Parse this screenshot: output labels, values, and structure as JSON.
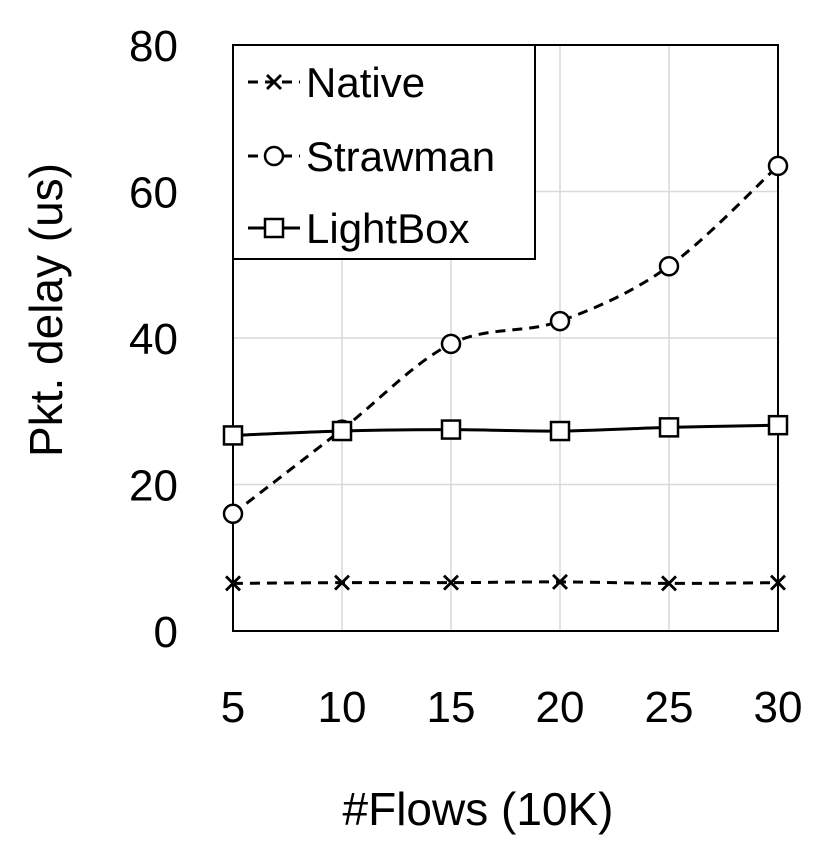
{
  "chart_data": {
    "type": "line",
    "title": "",
    "xlabel": "#Flows (10K)",
    "ylabel": "Pkt. delay (us)",
    "x": [
      5,
      10,
      15,
      20,
      25,
      30
    ],
    "x_tick_labels": [
      "5",
      "10",
      "15",
      "20",
      "25",
      "30"
    ],
    "ylim": [
      0,
      80
    ],
    "y_ticks": [
      0,
      20,
      40,
      60,
      80
    ],
    "y_tick_labels": [
      "0",
      "20",
      "40",
      "60",
      "80"
    ],
    "grid": "on (vertical and horizontal)",
    "legend_position": "top-left",
    "series": [
      {
        "name": "Native",
        "values": [
          6.5,
          6.6,
          6.6,
          6.7,
          6.5,
          6.6
        ],
        "line_style": "dashed",
        "marker": "x",
        "color": "#000000"
      },
      {
        "name": "Strawman",
        "values": [
          16,
          27.5,
          39.2,
          42.3,
          49.8,
          63.5
        ],
        "line_style": "dashed",
        "marker": "circle",
        "color": "#000000"
      },
      {
        "name": "LightBox",
        "values": [
          26.7,
          27.3,
          27.5,
          27.3,
          27.8,
          28.1
        ],
        "line_style": "solid",
        "marker": "square",
        "color": "#000000"
      }
    ]
  }
}
